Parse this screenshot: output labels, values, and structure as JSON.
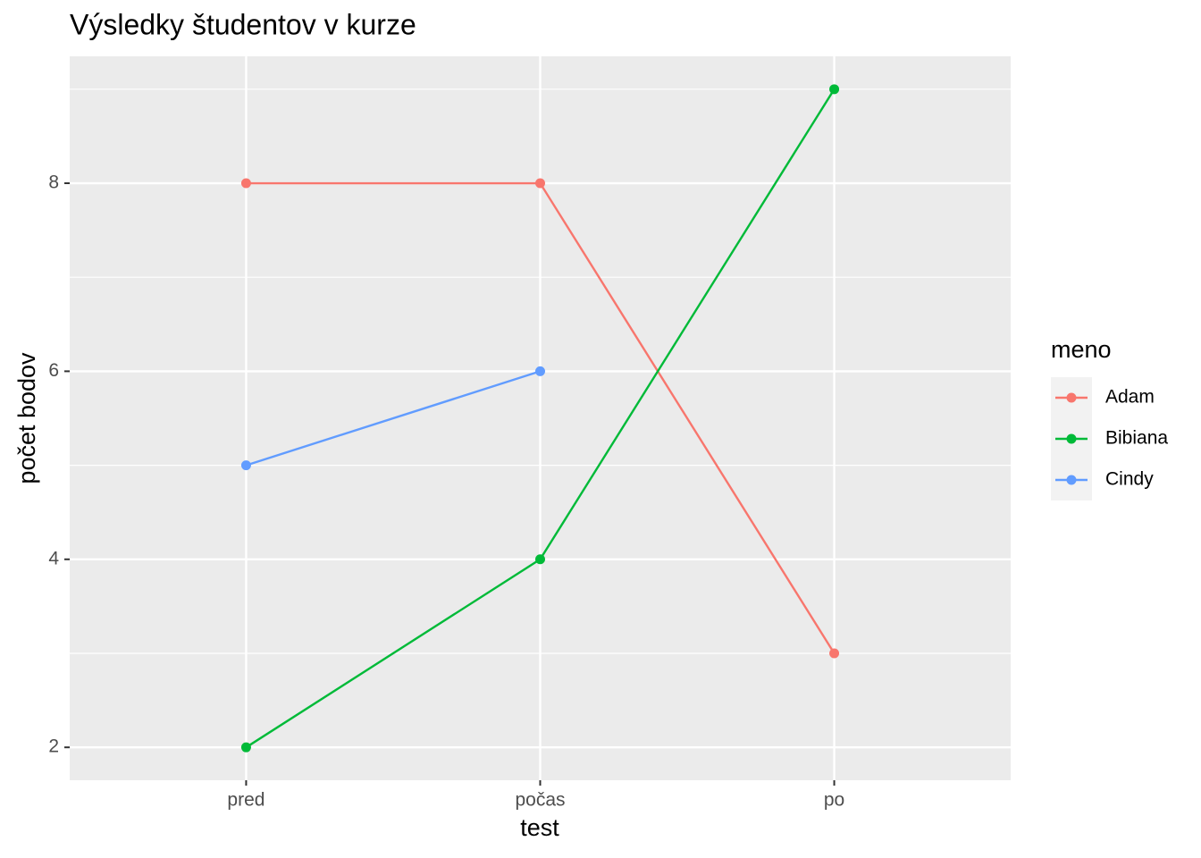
{
  "chart_data": {
    "type": "line",
    "title": "Výsledky študentov v kurze",
    "x_label": "test",
    "y_label": "počet bodov",
    "categories": [
      "pred",
      "počas",
      "po"
    ],
    "series": [
      {
        "name": "Adam",
        "color": "#F8766D",
        "values": [
          8,
          8,
          3
        ]
      },
      {
        "name": "Bibiana",
        "color": "#00BA38",
        "values": [
          2,
          4,
          9
        ]
      },
      {
        "name": "Cindy",
        "color": "#619CFF",
        "values": [
          5,
          6,
          null
        ]
      }
    ],
    "ylim": [
      1.65,
      9.35
    ],
    "yticks": [
      2,
      4,
      6,
      8
    ],
    "grid": true,
    "legend_title": "meno",
    "legend": "right"
  }
}
